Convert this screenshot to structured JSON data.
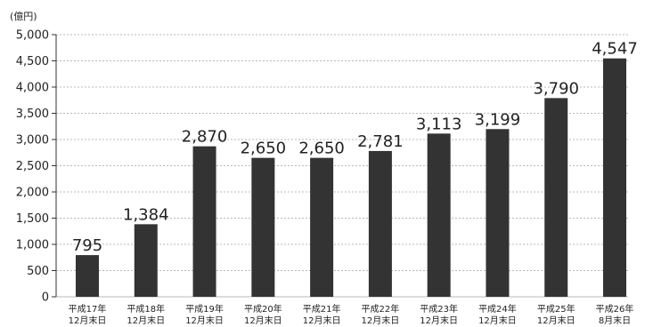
{
  "title": "",
  "chart_data": {
    "type": "bar",
    "unit_label": "(億円)",
    "categories": [
      [
        "平成17年",
        "12月末日"
      ],
      [
        "平成18年",
        "12月末日"
      ],
      [
        "平成19年",
        "12月末日"
      ],
      [
        "平成20年",
        "12月末日"
      ],
      [
        "平成21年",
        "12月末日"
      ],
      [
        "平成22年",
        "12月末日"
      ],
      [
        "平成23年",
        "12月末日"
      ],
      [
        "平成24年",
        "12月末日"
      ],
      [
        "平成25年",
        "12月末日"
      ],
      [
        "平成26年",
        "8月末日"
      ]
    ],
    "values": [
      795,
      1384,
      2870,
      2650,
      2650,
      2781,
      3113,
      3199,
      3790,
      4547
    ],
    "value_labels": [
      "795",
      "1,384",
      "2,870",
      "2,650",
      "2,650",
      "2,781",
      "3,113",
      "3,199",
      "3,790",
      "4,547"
    ],
    "yticks": [
      0,
      500,
      1000,
      1500,
      2000,
      2500,
      3000,
      3500,
      4000,
      4500,
      5000
    ],
    "ytick_labels": [
      "0",
      "500",
      "1,000",
      "1,500",
      "2,000",
      "2,500",
      "3,000",
      "3,500",
      "4,000",
      "4,500",
      "5,000"
    ],
    "ylim": [
      0,
      5000
    ],
    "grid": true,
    "colors": {
      "bar": "#333333",
      "grid": "#b8b8b8",
      "axis": "#333333",
      "text": "#222222"
    }
  }
}
